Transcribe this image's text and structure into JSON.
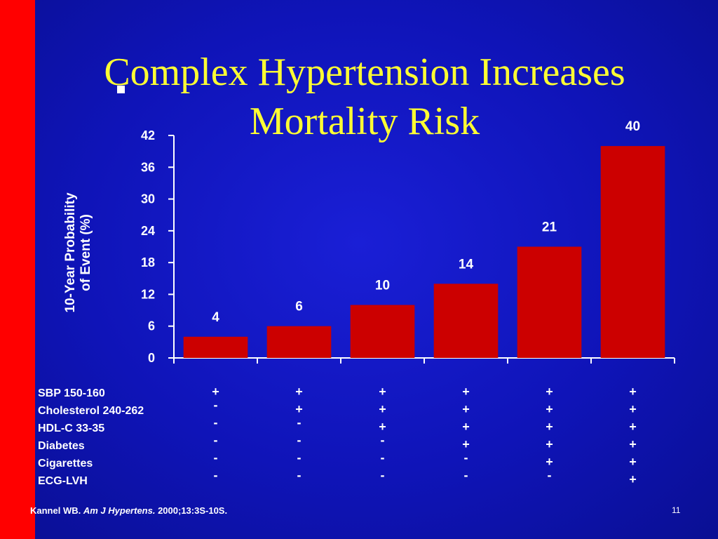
{
  "slide": {
    "title_line1": "Complex Hypertension Increases",
    "title_line2": "Mortality Risk",
    "citation_author": "Kannel WB.",
    "citation_journal": "Am J Hypertens.",
    "citation_ref": "2000;13:3S-10S.",
    "slide_number": "11",
    "colors": {
      "background": "#0f14b8",
      "accent_strip": "#ff0000",
      "title": "#ffff33",
      "bar": "#cc0000"
    }
  },
  "chart_data": {
    "type": "bar",
    "title": "Complex Hypertension Increases Mortality Risk",
    "ylabel_line1": "10-Year Probability",
    "ylabel_line2": "of Event (%)",
    "ylim": [
      0,
      42
    ],
    "yticks": [
      0,
      6,
      12,
      18,
      24,
      30,
      36,
      42
    ],
    "values": [
      4,
      6,
      10,
      14,
      21,
      40
    ],
    "grid": false
  },
  "conditions": {
    "labels": [
      "SBP 150-160",
      "Cholesterol 240-262",
      "HDL-C 33-35",
      "Diabetes",
      "Cigarettes",
      "ECG-LVH"
    ],
    "matrix": [
      [
        "+",
        "-",
        "-",
        "-",
        "-",
        "-"
      ],
      [
        "+",
        "+",
        "-",
        "-",
        "-",
        "-"
      ],
      [
        "+",
        "+",
        "+",
        "-",
        "-",
        "-"
      ],
      [
        "+",
        "+",
        "+",
        "+",
        "-",
        "-"
      ],
      [
        "+",
        "+",
        "+",
        "+",
        "+",
        "-"
      ],
      [
        "+",
        "+",
        "+",
        "+",
        "+",
        "+"
      ]
    ]
  }
}
